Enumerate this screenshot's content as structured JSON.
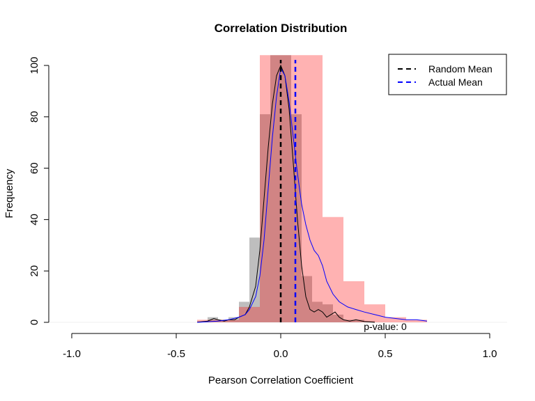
{
  "chart_data": {
    "type": "histogram",
    "title": "Correlation Distribution",
    "xlabel": "Pearson Correlation Coefficient",
    "ylabel": "Frequency",
    "xlim": [
      -1.0,
      1.0
    ],
    "ylim": [
      0,
      100
    ],
    "x_ticks": [
      "-1.0",
      "-0.5",
      "0.0",
      "0.5",
      "1.0"
    ],
    "x_tick_values": [
      -1.0,
      -0.5,
      0.0,
      0.5,
      1.0
    ],
    "y_ticks": [
      "0",
      "20",
      "40",
      "60",
      "80",
      "100"
    ],
    "y_tick_values": [
      0,
      20,
      40,
      60,
      80,
      100
    ],
    "series": [
      {
        "name": "random-histogram",
        "color": "#bebebe",
        "bin_width": 0.05,
        "bins": [
          {
            "x0": -0.4,
            "x1": -0.35,
            "count": 0.5
          },
          {
            "x0": -0.35,
            "x1": -0.3,
            "count": 2
          },
          {
            "x0": -0.3,
            "x1": -0.25,
            "count": 1
          },
          {
            "x0": -0.25,
            "x1": -0.2,
            "count": 2
          },
          {
            "x0": -0.2,
            "x1": -0.15,
            "count": 8
          },
          {
            "x0": -0.15,
            "x1": -0.1,
            "count": 33
          },
          {
            "x0": -0.1,
            "x1": -0.05,
            "count": 81
          },
          {
            "x0": -0.05,
            "x1": 0.0,
            "count": 104
          },
          {
            "x0": 0.0,
            "x1": 0.05,
            "count": 104
          },
          {
            "x0": 0.05,
            "x1": 0.1,
            "count": 81
          },
          {
            "x0": 0.1,
            "x1": 0.15,
            "count": 18
          },
          {
            "x0": 0.15,
            "x1": 0.2,
            "count": 8
          },
          {
            "x0": 0.2,
            "x1": 0.25,
            "count": 7
          },
          {
            "x0": 0.25,
            "x1": 0.3,
            "count": 3
          },
          {
            "x0": 0.3,
            "x1": 0.35,
            "count": 1
          },
          {
            "x0": 0.35,
            "x1": 0.4,
            "count": 1
          },
          {
            "x0": 0.4,
            "x1": 0.45,
            "count": 0.5
          }
        ]
      },
      {
        "name": "actual-histogram",
        "color": "#ff0000",
        "opacity": 0.3,
        "bin_width": 0.1,
        "bins": [
          {
            "x0": -0.4,
            "x1": -0.3,
            "count": 1
          },
          {
            "x0": -0.3,
            "x1": -0.2,
            "count": 1
          },
          {
            "x0": -0.2,
            "x1": -0.1,
            "count": 6
          },
          {
            "x0": -0.1,
            "x1": 0.0,
            "count": 104
          },
          {
            "x0": 0.0,
            "x1": 0.1,
            "count": 104
          },
          {
            "x0": 0.1,
            "x1": 0.2,
            "count": 104
          },
          {
            "x0": 0.2,
            "x1": 0.3,
            "count": 41
          },
          {
            "x0": 0.3,
            "x1": 0.4,
            "count": 16
          },
          {
            "x0": 0.4,
            "x1": 0.5,
            "count": 7
          },
          {
            "x0": 0.5,
            "x1": 0.6,
            "count": 2
          },
          {
            "x0": 0.6,
            "x1": 0.7,
            "count": 1
          }
        ]
      },
      {
        "name": "random-density",
        "color": "#000000",
        "points": [
          [
            -0.4,
            0
          ],
          [
            -0.35,
            0.5
          ],
          [
            -0.32,
            1.5
          ],
          [
            -0.3,
            1
          ],
          [
            -0.27,
            0.5
          ],
          [
            -0.25,
            1
          ],
          [
            -0.22,
            1
          ],
          [
            -0.2,
            2
          ],
          [
            -0.17,
            3
          ],
          [
            -0.15,
            6
          ],
          [
            -0.12,
            14
          ],
          [
            -0.1,
            28
          ],
          [
            -0.08,
            48
          ],
          [
            -0.06,
            68
          ],
          [
            -0.04,
            85
          ],
          [
            -0.02,
            96
          ],
          [
            0.0,
            100
          ],
          [
            0.02,
            96
          ],
          [
            0.04,
            83
          ],
          [
            0.06,
            62
          ],
          [
            0.08,
            40
          ],
          [
            0.1,
            22
          ],
          [
            0.12,
            10
          ],
          [
            0.14,
            5
          ],
          [
            0.16,
            4
          ],
          [
            0.18,
            5
          ],
          [
            0.2,
            4
          ],
          [
            0.22,
            2
          ],
          [
            0.24,
            3
          ],
          [
            0.26,
            4
          ],
          [
            0.28,
            2
          ],
          [
            0.3,
            1
          ],
          [
            0.33,
            0.5
          ],
          [
            0.36,
            1
          ],
          [
            0.4,
            0.3
          ],
          [
            0.45,
            0
          ]
        ]
      },
      {
        "name": "actual-density",
        "color": "#0000ff",
        "points": [
          [
            -0.4,
            0
          ],
          [
            -0.3,
            0.5
          ],
          [
            -0.25,
            1
          ],
          [
            -0.2,
            2
          ],
          [
            -0.17,
            3
          ],
          [
            -0.15,
            5
          ],
          [
            -0.12,
            10
          ],
          [
            -0.1,
            18
          ],
          [
            -0.08,
            32
          ],
          [
            -0.06,
            52
          ],
          [
            -0.04,
            72
          ],
          [
            -0.02,
            88
          ],
          [
            0.0,
            99
          ],
          [
            0.02,
            96
          ],
          [
            0.04,
            86
          ],
          [
            0.06,
            72
          ],
          [
            0.08,
            58
          ],
          [
            0.1,
            46
          ],
          [
            0.12,
            38
          ],
          [
            0.14,
            32
          ],
          [
            0.16,
            28
          ],
          [
            0.18,
            26
          ],
          [
            0.2,
            22
          ],
          [
            0.22,
            16
          ],
          [
            0.25,
            11
          ],
          [
            0.28,
            8
          ],
          [
            0.32,
            6
          ],
          [
            0.36,
            5
          ],
          [
            0.4,
            4
          ],
          [
            0.45,
            3
          ],
          [
            0.5,
            2
          ],
          [
            0.55,
            1.5
          ],
          [
            0.6,
            1
          ],
          [
            0.65,
            1
          ],
          [
            0.7,
            0.5
          ]
        ]
      }
    ],
    "vlines": [
      {
        "label": "Random Mean",
        "x": 0.0,
        "color": "#000000"
      },
      {
        "label": "Actual Mean",
        "x": 0.07,
        "color": "#0000ff"
      }
    ],
    "legend": {
      "position": "top-right",
      "entries": [
        {
          "label": "Random Mean",
          "color": "#000000"
        },
        {
          "label": "Actual Mean",
          "color": "#0000ff"
        }
      ]
    },
    "annotation": {
      "text": "p-value: 0",
      "x": 0.5,
      "y": 0
    }
  }
}
